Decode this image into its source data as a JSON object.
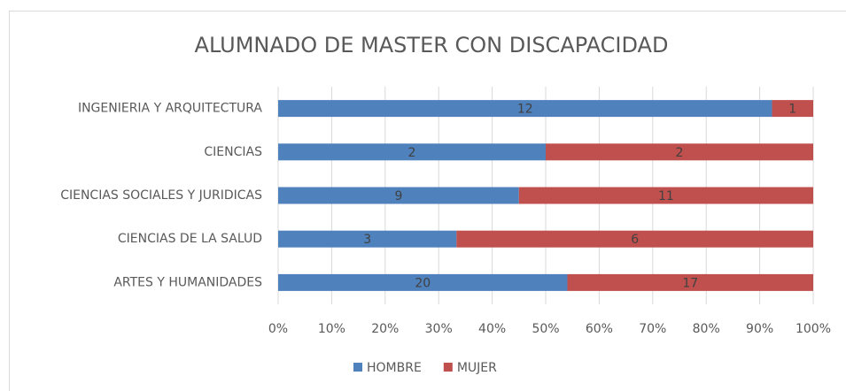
{
  "chart_data": {
    "type": "bar",
    "orientation": "horizontal",
    "stack": "percent",
    "title": "ALUMNADO DE MASTER CON DISCAPACIDAD",
    "categories": [
      "INGENIERIA Y ARQUITECTURA",
      "CIENCIAS",
      "CIENCIAS SOCIALES Y JURIDICAS",
      "CIENCIAS DE LA SALUD",
      "ARTES Y HUMANIDADES"
    ],
    "series": [
      {
        "name": "HOMBRE",
        "color": "#4f81bd",
        "values": [
          12,
          2,
          9,
          3,
          20
        ]
      },
      {
        "name": "MUJER",
        "color": "#c0504d",
        "values": [
          1,
          2,
          11,
          6,
          17
        ]
      }
    ],
    "xlim": [
      0,
      100
    ],
    "xticks": [
      {
        "value": 0,
        "label": "0%"
      },
      {
        "value": 10,
        "label": "10%"
      },
      {
        "value": 20,
        "label": "20%"
      },
      {
        "value": 30,
        "label": "30%"
      },
      {
        "value": 40,
        "label": "40%"
      },
      {
        "value": 50,
        "label": "50%"
      },
      {
        "value": 60,
        "label": "60%"
      },
      {
        "value": 70,
        "label": "70%"
      },
      {
        "value": 80,
        "label": "80%"
      },
      {
        "value": 90,
        "label": "90%"
      },
      {
        "value": 100,
        "label": "100%"
      }
    ],
    "grid": true,
    "legend": "bottom"
  }
}
